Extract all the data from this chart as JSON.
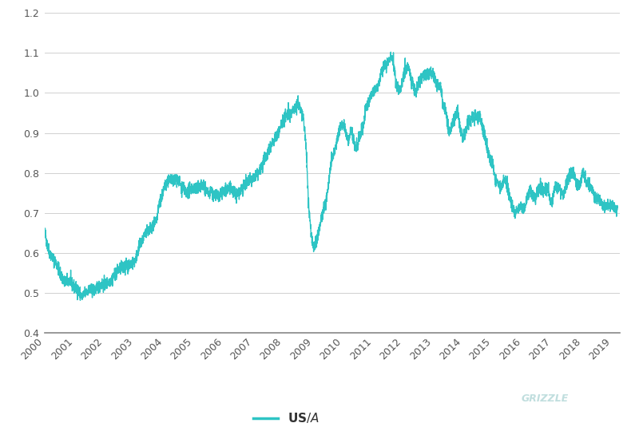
{
  "line_color": "#2EC4C4",
  "line_width": 1.0,
  "background_color": "#ffffff",
  "grid_color": "#d0d0d0",
  "legend_label": "US$/A$",
  "tick_color": "#555555",
  "axis_color": "#888888",
  "ylim": [
    0.4,
    1.2
  ],
  "yticks": [
    0.4,
    0.5,
    0.6,
    0.7,
    0.8,
    0.9,
    1.0,
    1.1,
    1.2
  ],
  "xtick_labels": [
    "2000",
    "2001",
    "2002",
    "2003",
    "2004",
    "2005",
    "2006",
    "2007",
    "2008",
    "2009",
    "2010",
    "2011",
    "2012",
    "2013",
    "2014",
    "2015",
    "2016",
    "2017",
    "2018",
    "2019"
  ],
  "grizzle_color": "#c0dede",
  "seed": 42,
  "noise_scale": 0.008,
  "monthly_data": [
    0.655,
    0.62,
    0.6,
    0.59,
    0.58,
    0.57,
    0.55,
    0.538,
    0.525,
    0.528,
    0.532,
    0.52,
    0.515,
    0.51,
    0.5,
    0.49,
    0.498,
    0.505,
    0.508,
    0.505,
    0.508,
    0.512,
    0.518,
    0.52,
    0.52,
    0.523,
    0.53,
    0.535,
    0.545,
    0.553,
    0.56,
    0.563,
    0.565,
    0.568,
    0.57,
    0.574,
    0.578,
    0.595,
    0.615,
    0.632,
    0.645,
    0.652,
    0.655,
    0.66,
    0.67,
    0.682,
    0.722,
    0.74,
    0.762,
    0.778,
    0.782,
    0.778,
    0.782,
    0.787,
    0.778,
    0.762,
    0.757,
    0.748,
    0.757,
    0.762,
    0.762,
    0.758,
    0.762,
    0.772,
    0.762,
    0.756,
    0.75,
    0.756,
    0.747,
    0.742,
    0.738,
    0.748,
    0.752,
    0.756,
    0.762,
    0.757,
    0.752,
    0.747,
    0.752,
    0.762,
    0.767,
    0.772,
    0.778,
    0.782,
    0.787,
    0.793,
    0.802,
    0.812,
    0.832,
    0.842,
    0.857,
    0.872,
    0.882,
    0.892,
    0.902,
    0.922,
    0.932,
    0.942,
    0.952,
    0.948,
    0.962,
    0.968,
    0.972,
    0.955,
    0.935,
    0.865,
    0.718,
    0.648,
    0.612,
    0.628,
    0.65,
    0.682,
    0.71,
    0.73,
    0.775,
    0.822,
    0.845,
    0.87,
    0.9,
    0.92,
    0.925,
    0.9,
    0.88,
    0.91,
    0.882,
    0.858,
    0.878,
    0.9,
    0.92,
    0.96,
    0.98,
    0.99,
    1.0,
    1.012,
    1.022,
    1.042,
    1.062,
    1.068,
    1.078,
    1.095,
    1.082,
    1.025,
    1.008,
    1.008,
    1.048,
    1.058,
    1.062,
    1.042,
    1.018,
    0.998,
    1.022,
    1.038,
    1.048,
    1.042,
    1.048,
    1.052,
    1.048,
    1.032,
    1.022,
    1.018,
    0.968,
    0.958,
    0.912,
    0.902,
    0.932,
    0.942,
    0.952,
    0.902,
    0.892,
    0.898,
    0.928,
    0.928,
    0.938,
    0.942,
    0.942,
    0.938,
    0.912,
    0.882,
    0.858,
    0.828,
    0.822,
    0.782,
    0.778,
    0.762,
    0.772,
    0.782,
    0.762,
    0.738,
    0.712,
    0.702,
    0.712,
    0.722,
    0.708,
    0.718,
    0.748,
    0.758,
    0.742,
    0.738,
    0.752,
    0.762,
    0.762,
    0.758,
    0.768,
    0.728,
    0.732,
    0.768,
    0.762,
    0.758,
    0.748,
    0.752,
    0.792,
    0.797,
    0.802,
    0.788,
    0.768,
    0.772,
    0.802,
    0.792,
    0.772,
    0.772,
    0.757,
    0.742,
    0.74,
    0.73,
    0.72,
    0.718,
    0.718,
    0.718,
    0.718,
    0.71,
    0.708
  ]
}
